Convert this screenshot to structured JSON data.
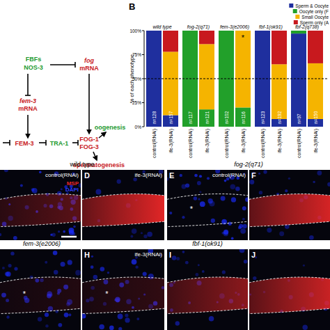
{
  "panel_a": {
    "nodes": [
      {
        "label": "FBFs",
        "color": "#1e9a2f"
      },
      {
        "label": "NOS-3",
        "color": "#1e9a2f"
      },
      {
        "label": "fog",
        "color": "#c8191e"
      },
      {
        "label": "mRNA",
        "color": "#c8191e"
      },
      {
        "label": "fem-3",
        "color": "#c8191e"
      },
      {
        "label": "mRNA",
        "color": "#c8191e"
      },
      {
        "label": "FEM-3",
        "color": "#c8191e"
      },
      {
        "label": "TRA-1",
        "color": "#1e9a2f"
      },
      {
        "label": "FOG-1",
        "color": "#c8191e"
      },
      {
        "label": "FOG-3",
        "color": "#c8191e"
      },
      {
        "label": "oogenesis",
        "color": "#1e9a2f"
      },
      {
        "label": "spermatogenesis",
        "color": "#c8191e"
      }
    ]
  },
  "chart_data": {
    "type": "bar",
    "letter": "B",
    "stacked": true,
    "ylabel": "% of each phenotype",
    "categories": [
      "control(RNAi)",
      "ife-3(RNAi)",
      "control(RNAi)",
      "ife-3(RNAi)",
      "control(RNAi)",
      "ife-3(RNAi)",
      "control(RNAi)",
      "ife-3(RNAi)",
      "control(RNAi)",
      "ife-3(RNAi)"
    ],
    "groups": [
      "wild type",
      "fog-2(q71)",
      "fem-3(e2006)",
      "fbf-1(ok91)",
      "fbf-2(q738)"
    ],
    "n_labels": [
      "n=128",
      "n=157",
      "n=117",
      "n=121",
      "n=102",
      "n=116",
      "n=123",
      "n=192",
      "n=97",
      "n=150"
    ],
    "series": [
      {
        "name": "Sperm & Oocyte",
        "color": "#1f2f9e",
        "values": [
          100,
          12,
          0,
          0,
          0,
          0,
          100,
          8,
          97,
          8
        ]
      },
      {
        "name": "Oocyte only (F",
        "color": "#22a02a",
        "values": [
          0,
          0,
          100,
          18,
          100,
          20,
          0,
          0,
          3,
          0
        ]
      },
      {
        "name": "Small Oocyte",
        "color": "#f5b400",
        "values": [
          0,
          66,
          0,
          68,
          0,
          80,
          0,
          57,
          0,
          58
        ]
      },
      {
        "name": "Sperm only (A",
        "color": "#c8191e",
        "values": [
          0,
          22,
          0,
          14,
          0,
          0,
          0,
          35,
          0,
          34
        ]
      }
    ],
    "ylim": [
      0,
      100
    ],
    "yticks": [
      {
        "value": 0,
        "label": "0%"
      },
      {
        "value": 25,
        "label": "25%"
      },
      {
        "value": 50,
        "label": "50%"
      },
      {
        "value": 75,
        "label": "75%"
      },
      {
        "value": 100,
        "label": "100%"
      }
    ],
    "hline": 50,
    "annotations": [
      {
        "text": "*",
        "index": 5
      }
    ],
    "legend": "top-right"
  },
  "images": {
    "headers": [
      "wild type",
      "fog-2(q71)",
      "fem-3(e2006)",
      "fbf-1(ok91)"
    ],
    "channel_labels": [
      {
        "label": "MSP",
        "color": "#e8262a"
      },
      {
        "label": "DAPI",
        "color": "#2b3cff"
      }
    ],
    "panels": [
      {
        "id": "C",
        "label": "control(RNAi)"
      },
      {
        "id": "D",
        "letter": "D",
        "label": "ife-3(RNAi)"
      },
      {
        "id": "E",
        "letter": "E",
        "label": "control(RNAi)",
        "asterisk": "*"
      },
      {
        "id": "F",
        "letter": "F"
      },
      {
        "id": "G",
        "asterisk": "*"
      },
      {
        "id": "H",
        "letter": "H",
        "label": "ife-3(RNAi)",
        "asterisk": "*"
      },
      {
        "id": "I",
        "letter": "I"
      },
      {
        "id": "J",
        "letter": "J"
      }
    ]
  }
}
